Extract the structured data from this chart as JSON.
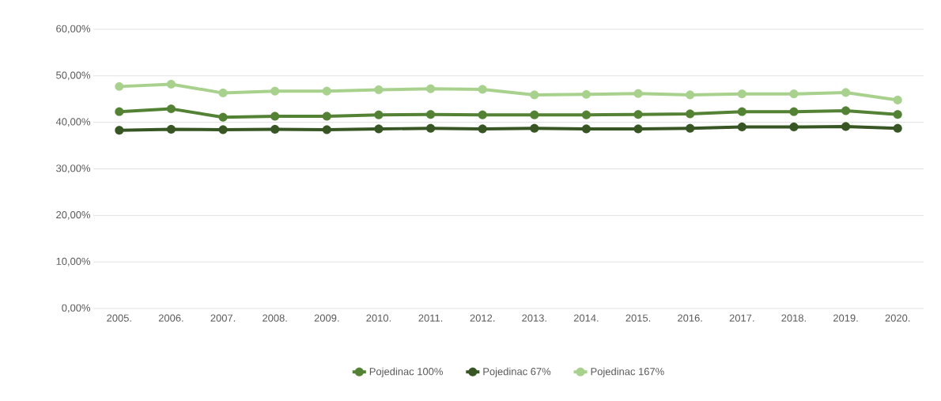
{
  "chart_data": {
    "type": "line",
    "categories": [
      "2005.",
      "2006.",
      "2007.",
      "2008.",
      "2009.",
      "2010.",
      "2011.",
      "2012.",
      "2013.",
      "2014.",
      "2015.",
      "2016.",
      "2017.",
      "2018.",
      "2019.",
      "2020."
    ],
    "series": [
      {
        "name": "Pojedinac 100%",
        "color": "#548235",
        "values": [
          42.3,
          42.9,
          41.1,
          41.3,
          41.3,
          41.6,
          41.7,
          41.6,
          41.6,
          41.6,
          41.7,
          41.8,
          42.3,
          42.3,
          42.5,
          41.7
        ]
      },
      {
        "name": "Pojedinac 67%",
        "color": "#375623",
        "values": [
          38.3,
          38.5,
          38.4,
          38.5,
          38.4,
          38.6,
          38.7,
          38.6,
          38.7,
          38.6,
          38.6,
          38.7,
          39.0,
          39.0,
          39.1,
          38.7
        ]
      },
      {
        "name": "Pojedinac 167%",
        "color": "#a9d18e",
        "values": [
          47.7,
          48.2,
          46.3,
          46.7,
          46.7,
          47.0,
          47.2,
          47.1,
          45.9,
          46.0,
          46.2,
          45.9,
          46.1,
          46.1,
          46.4,
          44.8
        ]
      }
    ],
    "ylim": [
      0,
      60
    ],
    "yticks": [
      {
        "value": 0,
        "label": "0,00%"
      },
      {
        "value": 10,
        "label": "10,00%"
      },
      {
        "value": 20,
        "label": "20,00%"
      },
      {
        "value": 30,
        "label": "30,00%"
      },
      {
        "value": 40,
        "label": "40,00%"
      },
      {
        "value": 50,
        "label": "50,00%"
      },
      {
        "value": 60,
        "label": "60,00%"
      }
    ],
    "grid": "y",
    "legend": "bottom",
    "marker": "circle",
    "line_style": "solid"
  }
}
